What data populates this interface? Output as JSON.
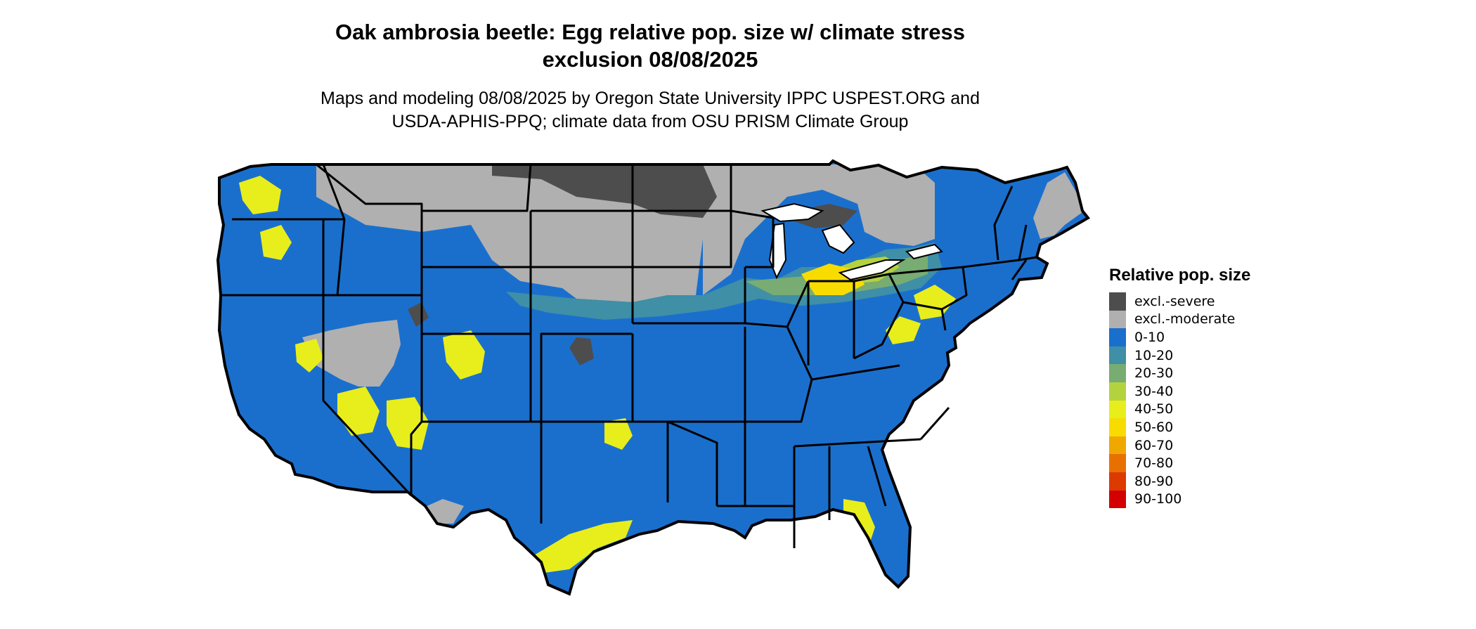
{
  "title": "Oak ambrosia beetle: Egg relative pop. size w/ climate stress\nexclusion 08/08/2025",
  "subtitle": "Maps and modeling 08/08/2025 by Oregon State University IPPC USPEST.ORG and\nUSDA-APHIS-PPQ; climate data from OSU PRISM Climate Group",
  "legend": {
    "title": "Relative pop. size",
    "items": [
      {
        "label": "excl.-severe",
        "color": "#4d4d4d"
      },
      {
        "label": "excl.-moderate",
        "color": "#b0b0b0"
      },
      {
        "label": "0-10",
        "color": "#1a6fcd"
      },
      {
        "label": "10-20",
        "color": "#3f8fa6"
      },
      {
        "label": "20-30",
        "color": "#78ac72"
      },
      {
        "label": "30-40",
        "color": "#b4d23e"
      },
      {
        "label": "40-50",
        "color": "#e8ee1c"
      },
      {
        "label": "50-60",
        "color": "#f8dc00"
      },
      {
        "label": "60-70",
        "color": "#f0a800"
      },
      {
        "label": "70-80",
        "color": "#e87000"
      },
      {
        "label": "80-90",
        "color": "#dc3a00"
      },
      {
        "label": "90-100",
        "color": "#d40000"
      }
    ]
  }
}
